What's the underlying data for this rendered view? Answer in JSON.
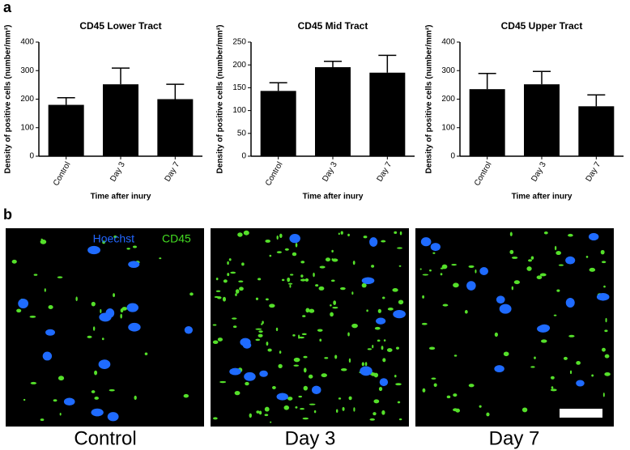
{
  "panel_labels": [
    "a",
    "b"
  ],
  "chart_data": [
    {
      "type": "bar",
      "title": "CD45 Lower Tract",
      "x_label": "Time after inury",
      "y_label": "Density of positive cells (number/mm²)",
      "categories": [
        "Control",
        "Day 3",
        "Day 7"
      ],
      "values": [
        180,
        252,
        200
      ],
      "errors": [
        25,
        57,
        52
      ],
      "color": "#000000",
      "ylim": [
        0,
        400
      ],
      "yticks": [
        0,
        100,
        200,
        300,
        400
      ]
    },
    {
      "type": "bar",
      "title": "CD45 Mid Tract",
      "x_label": "Time after inury",
      "y_label": "Density of positive cells (number/mm²)",
      "categories": [
        "Control",
        "Day 3",
        "Day 7"
      ],
      "values": [
        143,
        195,
        183
      ],
      "errors": [
        18,
        13,
        38
      ],
      "color": "#000000",
      "ylim": [
        0,
        250
      ],
      "yticks": [
        0,
        50,
        100,
        150,
        200,
        250
      ]
    },
    {
      "type": "bar",
      "title": "CD45 Upper Tract",
      "x_label": "Time after inury",
      "y_label": "Density of positive cells (number/mm²)",
      "categories": [
        "Control",
        "Day 3",
        "Day 7"
      ],
      "values": [
        235,
        252,
        175
      ],
      "errors": [
        55,
        45,
        40
      ],
      "color": "#000000",
      "ylim": [
        0,
        400
      ],
      "yticks": [
        0,
        100,
        200,
        300,
        400
      ]
    }
  ],
  "images": {
    "stain_labels": [
      "Hoechst",
      "CD45"
    ],
    "captions": [
      "Control",
      "Day 3",
      "Day 7"
    ]
  }
}
